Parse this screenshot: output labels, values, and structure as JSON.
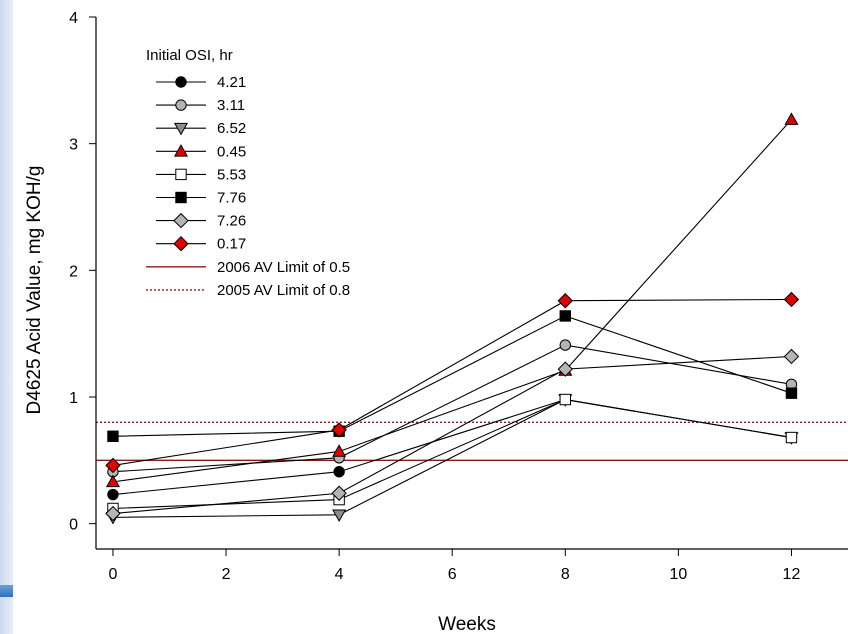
{
  "chart_data": {
    "type": "line",
    "title": "",
    "xlabel": "Weeks",
    "ylabel": "D4625 Acid Value, mg KOH/g",
    "xlim": [
      -0.3,
      13
    ],
    "ylim": [
      -0.2,
      4
    ],
    "xticks": [
      0,
      2,
      4,
      6,
      8,
      10,
      12
    ],
    "yticks": [
      0,
      1,
      2,
      3,
      4
    ],
    "grid": false,
    "legend": {
      "title": "Initial OSI, hr",
      "placement": "top-left"
    },
    "x": [
      0,
      4,
      8,
      12
    ],
    "series": [
      {
        "name": "4.21",
        "marker": "circle",
        "fill": "#000000",
        "values": [
          0.23,
          0.41,
          0.98,
          0.68
        ]
      },
      {
        "name": "3.11",
        "marker": "circle",
        "fill": "#b4b4b4",
        "values": [
          0.41,
          0.52,
          1.41,
          1.1
        ]
      },
      {
        "name": "6.52",
        "marker": "triangle-down",
        "fill": "#8c8c8c",
        "values": [
          0.05,
          0.07,
          0.98,
          0.68
        ]
      },
      {
        "name": "0.45",
        "marker": "triangle-up",
        "fill": "#e00000",
        "values": [
          0.33,
          0.57,
          1.21,
          3.19
        ]
      },
      {
        "name": "5.53",
        "marker": "square",
        "fill": "#ffffff",
        "values": [
          0.12,
          0.19,
          0.98,
          0.68
        ]
      },
      {
        "name": "7.76",
        "marker": "square",
        "fill": "#000000",
        "values": [
          0.69,
          0.73,
          1.64,
          1.03
        ]
      },
      {
        "name": "7.26",
        "marker": "diamond",
        "fill": "#b4b4b4",
        "values": [
          0.08,
          0.24,
          1.22,
          1.32
        ]
      },
      {
        "name": "0.17",
        "marker": "diamond",
        "fill": "#e00000",
        "values": [
          0.46,
          0.74,
          1.76,
          1.77
        ]
      }
    ],
    "reference_lines": [
      {
        "name": "2006 AV Limit of 0.5",
        "value": 0.5,
        "style": "solid",
        "color": "#8b1a1a"
      },
      {
        "name": "2005 AV Limit of 0.8",
        "value": 0.8,
        "style": "dotted",
        "color": "#8b1a1a"
      }
    ]
  }
}
